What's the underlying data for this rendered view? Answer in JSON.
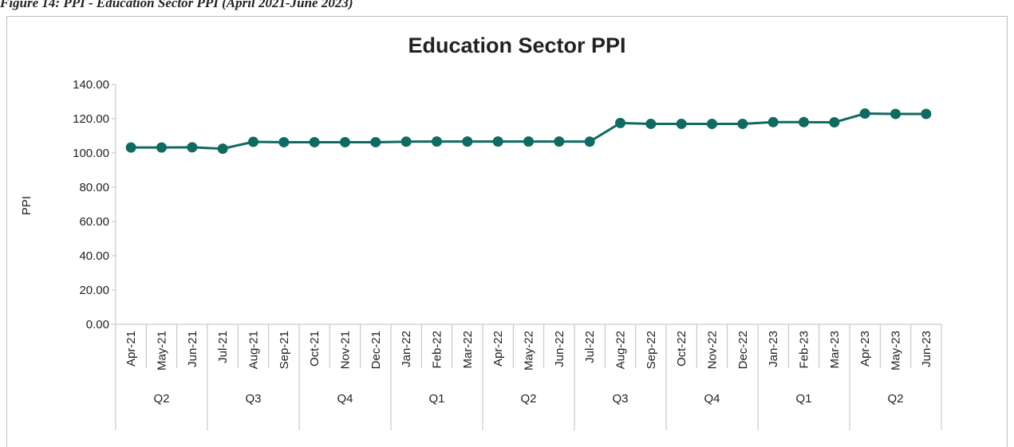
{
  "caption": "Figure 14: PPI - Education Sector PPI (April 2021-June 2023)",
  "chart_data": {
    "type": "line",
    "title": "Education Sector PPI",
    "y_label": "PPI",
    "categories": [
      "Apr-21",
      "May-21",
      "Jun-21",
      "Jul-21",
      "Aug-21",
      "Sep-21",
      "Oct-21",
      "Nov-21",
      "Dec-21",
      "Jan-22",
      "Feb-22",
      "Mar-22",
      "Apr-22",
      "May-22",
      "Jun-22",
      "Jul-22",
      "Aug-22",
      "Sep-22",
      "Oct-22",
      "Nov-22",
      "Dec-22",
      "Jan-23",
      "Feb-23",
      "Mar-23",
      "Apr-23",
      "May-23",
      "Jun-23"
    ],
    "quarters": [
      "Q2",
      "Q2",
      "Q2",
      "Q3",
      "Q3",
      "Q3",
      "Q4",
      "Q4",
      "Q4",
      "Q1",
      "Q1",
      "Q1",
      "Q2",
      "Q2",
      "Q2",
      "Q3",
      "Q3",
      "Q3",
      "Q4",
      "Q4",
      "Q4",
      "Q1",
      "Q1",
      "Q1",
      "Q2",
      "Q2",
      "Q2"
    ],
    "values": [
      103.2,
      103.2,
      103.3,
      102.5,
      106.5,
      106.3,
      106.3,
      106.3,
      106.3,
      106.6,
      106.7,
      106.7,
      106.7,
      106.7,
      106.7,
      106.6,
      117.5,
      117.0,
      117.0,
      117.0,
      117.0,
      118.0,
      118.0,
      117.9,
      123.0,
      122.8,
      122.8
    ],
    "color": "#0f6b61",
    "ylim": [
      0,
      140
    ],
    "yticks": [
      {
        "value": 0,
        "label": "0.00"
      },
      {
        "value": 20,
        "label": "20.00"
      },
      {
        "value": 40,
        "label": "40.00"
      },
      {
        "value": 60,
        "label": "60.00"
      },
      {
        "value": 80,
        "label": "80.00"
      },
      {
        "value": 100,
        "label": "100.00"
      },
      {
        "value": 120,
        "label": "120.00"
      },
      {
        "value": 140,
        "label": "140.00"
      }
    ]
  }
}
